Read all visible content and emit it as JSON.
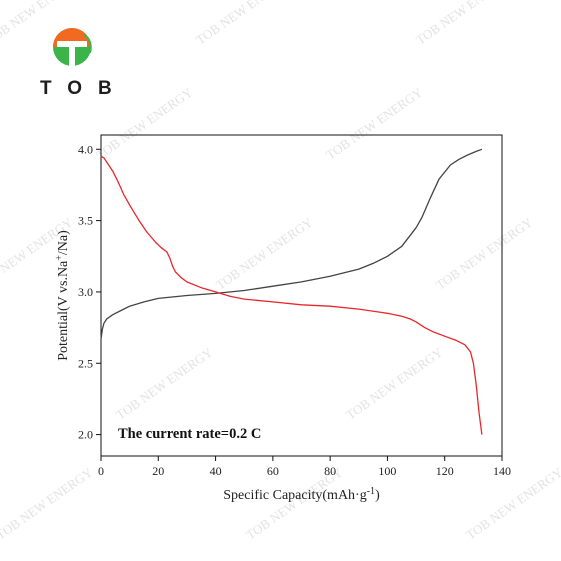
{
  "brand": {
    "name": "TOB",
    "watermark": "TOB NEW ENERGY",
    "colors": {
      "orange": "#f26a21",
      "green": "#3bb54a",
      "dark": "#1e1e1e"
    }
  },
  "chart_data": {
    "type": "line",
    "title": "",
    "xlabel": "Specific Capacity(mAh·g⁻¹)",
    "ylabel": "Potential(V vs.Na⁺/Na)",
    "xlim": [
      0,
      140
    ],
    "ylim": [
      1.85,
      4.1
    ],
    "xticks": [
      0,
      20,
      40,
      60,
      80,
      100,
      120,
      140
    ],
    "yticks": [
      2.0,
      2.5,
      3.0,
      3.5,
      4.0
    ],
    "ytick_labels": [
      "2.0",
      "2.5",
      "3.0",
      "3.5",
      "4.0"
    ],
    "grid": false,
    "legend": "none",
    "annotation": "The current rate=0.2 C",
    "series": [
      {
        "color": "#444444",
        "x": [
          0,
          0.5,
          1,
          2,
          4,
          7,
          10,
          15,
          20,
          30,
          40,
          50,
          60,
          70,
          80,
          90,
          95,
          100,
          105,
          110,
          112,
          115,
          118,
          122,
          125,
          128,
          131,
          133
        ],
        "y": [
          2.67,
          2.74,
          2.78,
          2.81,
          2.84,
          2.87,
          2.9,
          2.93,
          2.955,
          2.975,
          2.99,
          3.01,
          3.04,
          3.07,
          3.11,
          3.16,
          3.2,
          3.25,
          3.32,
          3.45,
          3.52,
          3.66,
          3.79,
          3.89,
          3.93,
          3.96,
          3.985,
          4.0
        ]
      },
      {
        "color": "#e8262c",
        "x": [
          0,
          1,
          2,
          4,
          6,
          8,
          10,
          13,
          16,
          19,
          21,
          23,
          24,
          25,
          26,
          28,
          30,
          35,
          40,
          45,
          50,
          60,
          70,
          80,
          90,
          100,
          105,
          108,
          110,
          113,
          116,
          120,
          124,
          127,
          129,
          130,
          131,
          132,
          133
        ],
        "y": [
          3.95,
          3.94,
          3.91,
          3.85,
          3.77,
          3.68,
          3.61,
          3.51,
          3.42,
          3.35,
          3.31,
          3.28,
          3.24,
          3.18,
          3.14,
          3.1,
          3.07,
          3.03,
          3.0,
          2.97,
          2.95,
          2.93,
          2.91,
          2.9,
          2.88,
          2.85,
          2.83,
          2.81,
          2.79,
          2.75,
          2.72,
          2.69,
          2.66,
          2.63,
          2.58,
          2.5,
          2.35,
          2.15,
          2.0
        ]
      }
    ]
  }
}
